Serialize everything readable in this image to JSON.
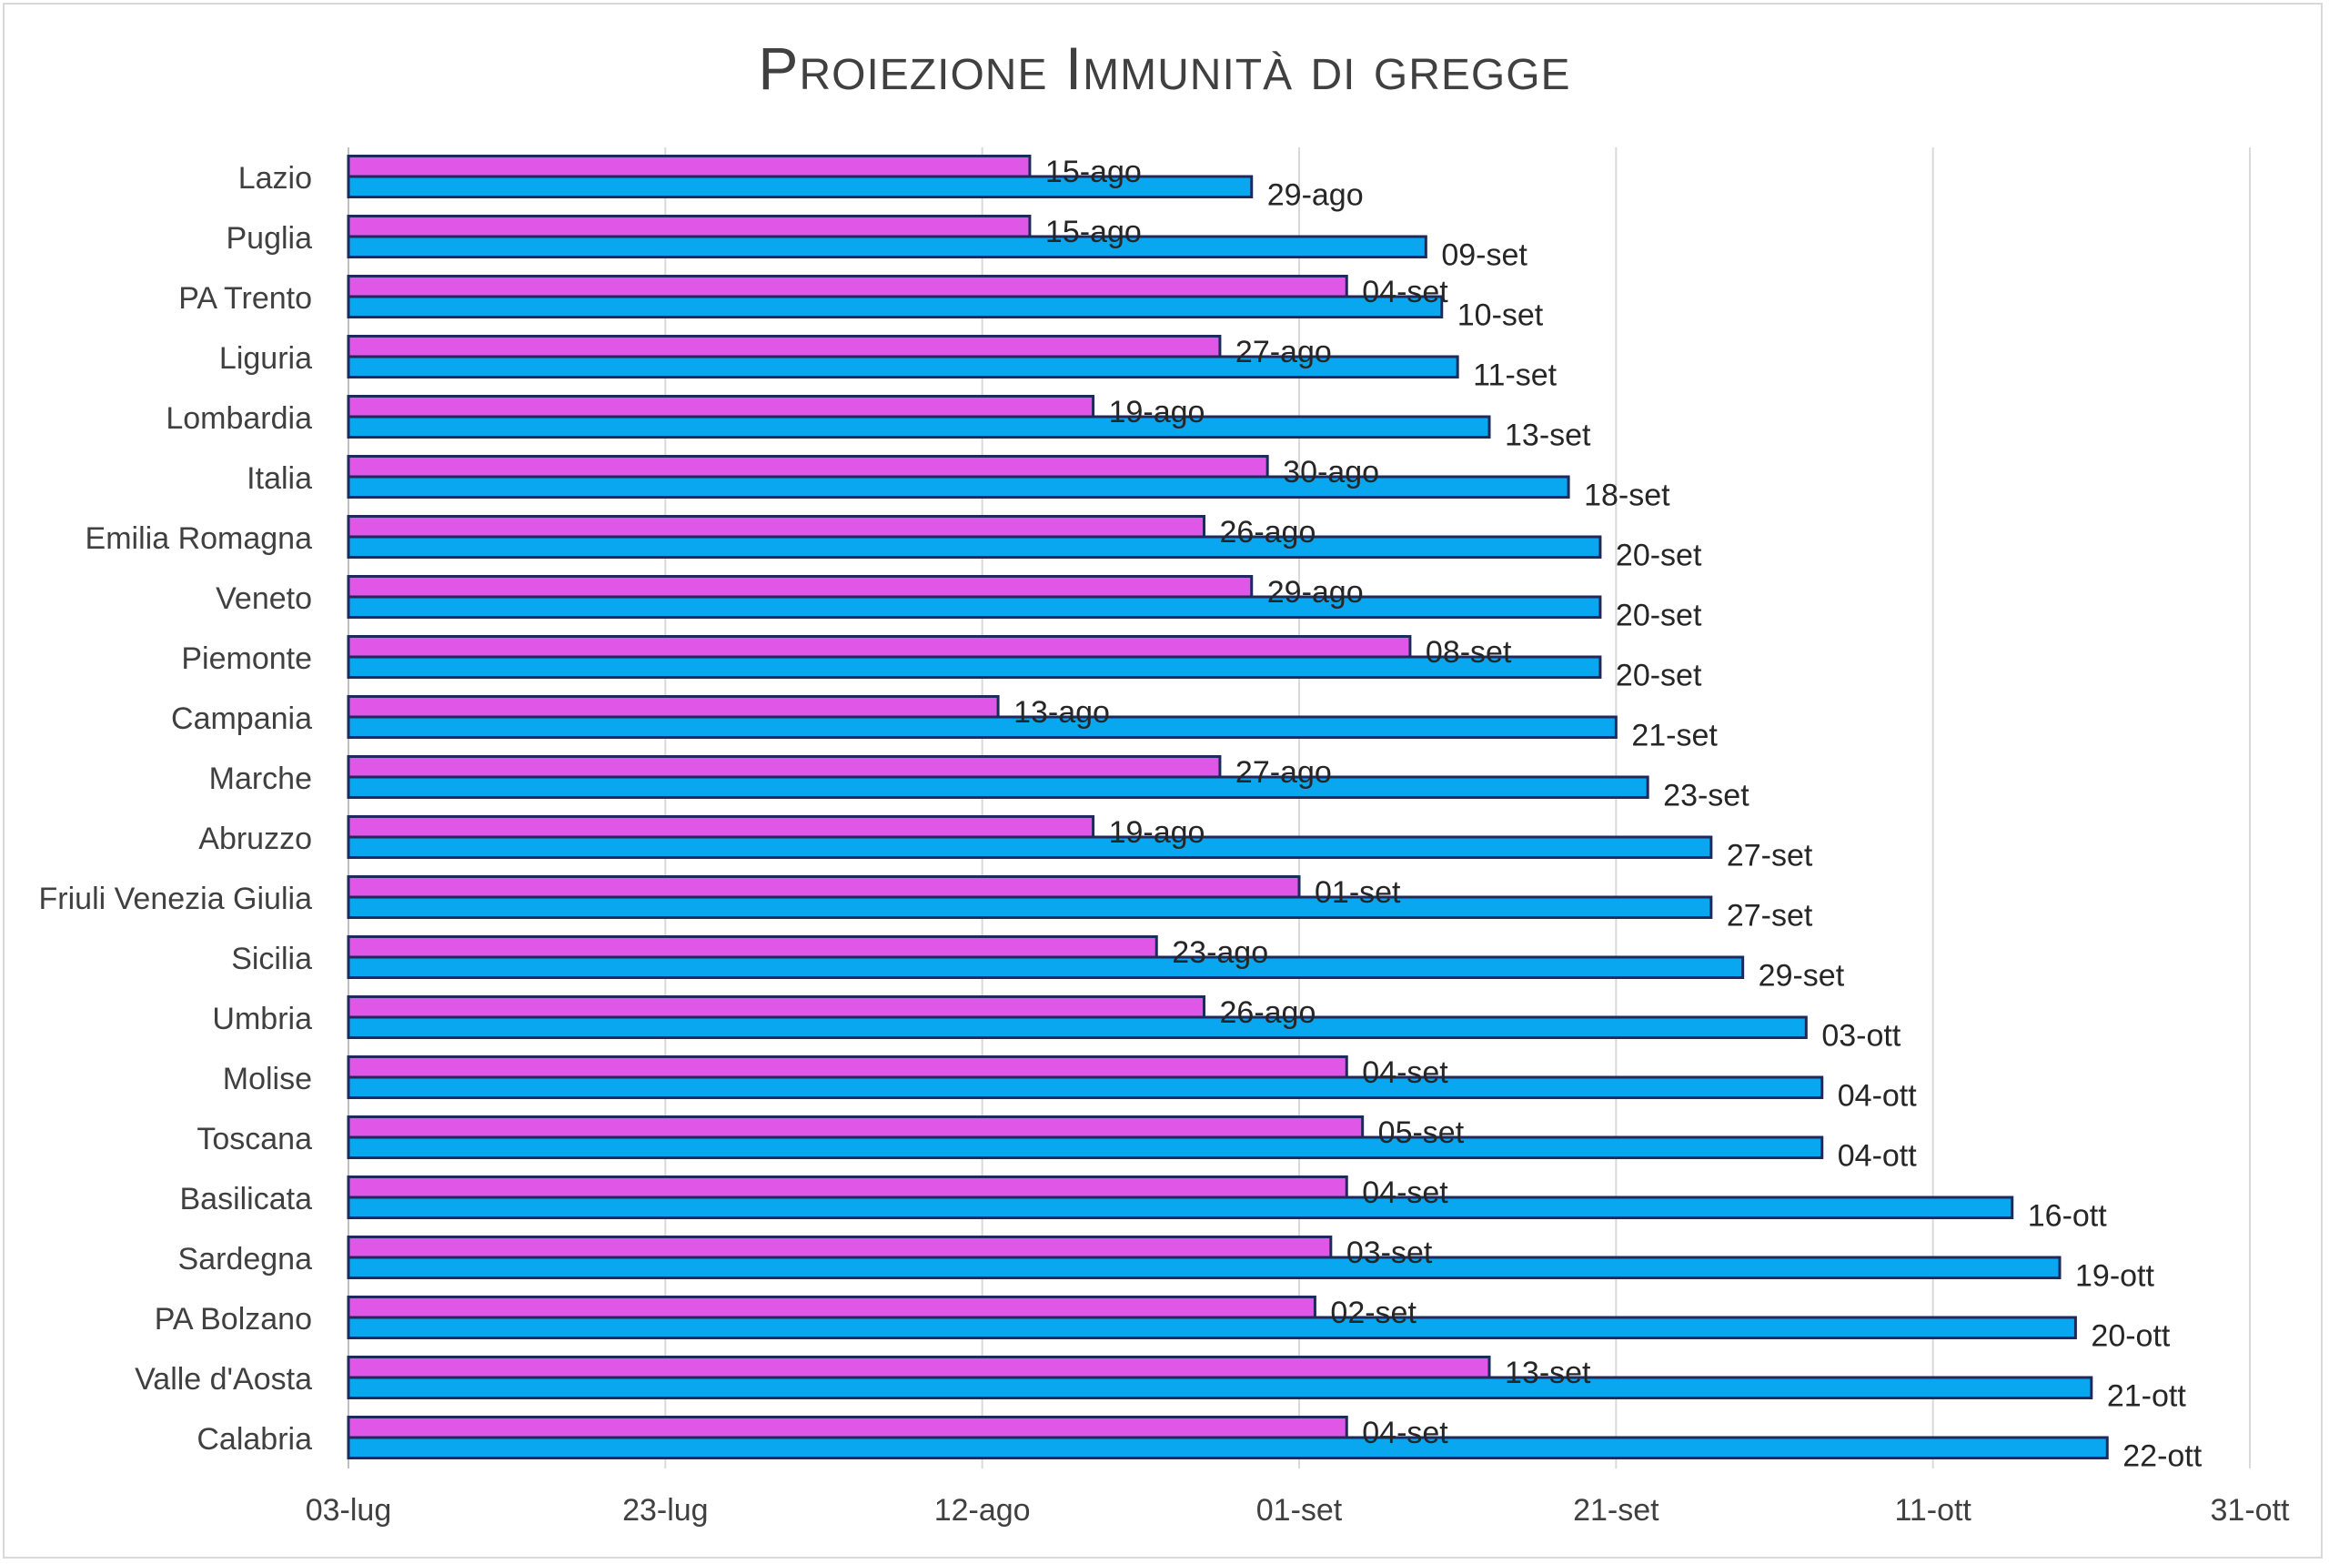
{
  "chart_data": {
    "type": "bar",
    "orientation": "horizontal",
    "title": "Proiezione Immunità di  gregge",
    "colors": {
      "series_a": "#e056e6",
      "series_b": "#08a7f0",
      "bar_border": "#1f2a5c"
    },
    "xlim": [
      "2021-07-03",
      "2021-10-31"
    ],
    "x_ticks": [
      {
        "date": "2021-07-03",
        "label": "03-lug"
      },
      {
        "date": "2021-07-23",
        "label": "23-lug"
      },
      {
        "date": "2021-08-12",
        "label": "12-ago"
      },
      {
        "date": "2021-09-01",
        "label": "01-set"
      },
      {
        "date": "2021-09-21",
        "label": "21-set"
      },
      {
        "date": "2021-10-11",
        "label": "11-ott"
      },
      {
        "date": "2021-10-31",
        "label": "31-ott"
      }
    ],
    "grid": true,
    "legend": "none",
    "categories": [
      "Lazio",
      "Puglia",
      "PA Trento",
      "Liguria",
      "Lombardia",
      "Italia",
      "Emilia Romagna",
      "Veneto ",
      "Piemonte",
      "Campania",
      "Marche",
      "Abruzzo",
      "Friuli Venezia Giulia",
      "Sicilia",
      "Umbria",
      "Molise",
      "Toscana ",
      "Basilicata",
      "Sardegna ",
      "PA Bolzano",
      "Valle d'Aosta",
      "Calabria"
    ],
    "series": [
      {
        "values": [
          "2021-08-15",
          "2021-08-15",
          "2021-09-04",
          "2021-08-27",
          "2021-08-19",
          "2021-08-30",
          "2021-08-26",
          "2021-08-29",
          "2021-09-08",
          "2021-08-13",
          "2021-08-27",
          "2021-08-19",
          "2021-09-01",
          "2021-08-23",
          "2021-08-26",
          "2021-09-04",
          "2021-09-05",
          "2021-09-04",
          "2021-09-03",
          "2021-09-02",
          "2021-09-13",
          "2021-09-04"
        ],
        "labels": [
          "15-ago",
          "15-ago",
          "04-set",
          "27-ago",
          "19-ago",
          "30-ago",
          "26-ago",
          "29-ago",
          "08-set",
          "13-ago",
          "27-ago",
          "19-ago",
          "01-set",
          "23-ago",
          "26-ago",
          "04-set",
          "05-set",
          "04-set",
          "03-set",
          "02-set",
          "13-set",
          "04-set"
        ]
      },
      {
        "values": [
          "2021-08-29",
          "2021-09-09",
          "2021-09-10",
          "2021-09-11",
          "2021-09-13",
          "2021-09-18",
          "2021-09-20",
          "2021-09-20",
          "2021-09-20",
          "2021-09-21",
          "2021-09-23",
          "2021-09-27",
          "2021-09-27",
          "2021-09-29",
          "2021-10-03",
          "2021-10-04",
          "2021-10-04",
          "2021-10-16",
          "2021-10-19",
          "2021-10-20",
          "2021-10-21",
          "2021-10-22"
        ],
        "labels": [
          "29-ago",
          "09-set",
          "10-set",
          "11-set",
          "13-set",
          "18-set",
          "20-set",
          "20-set",
          "20-set",
          "21-set",
          "23-set",
          "27-set",
          "27-set",
          "29-set",
          "03-ott",
          "04-ott",
          "04-ott",
          "16-ott",
          "19-ott",
          "20-ott",
          "21-ott",
          "22-ott"
        ]
      }
    ]
  }
}
